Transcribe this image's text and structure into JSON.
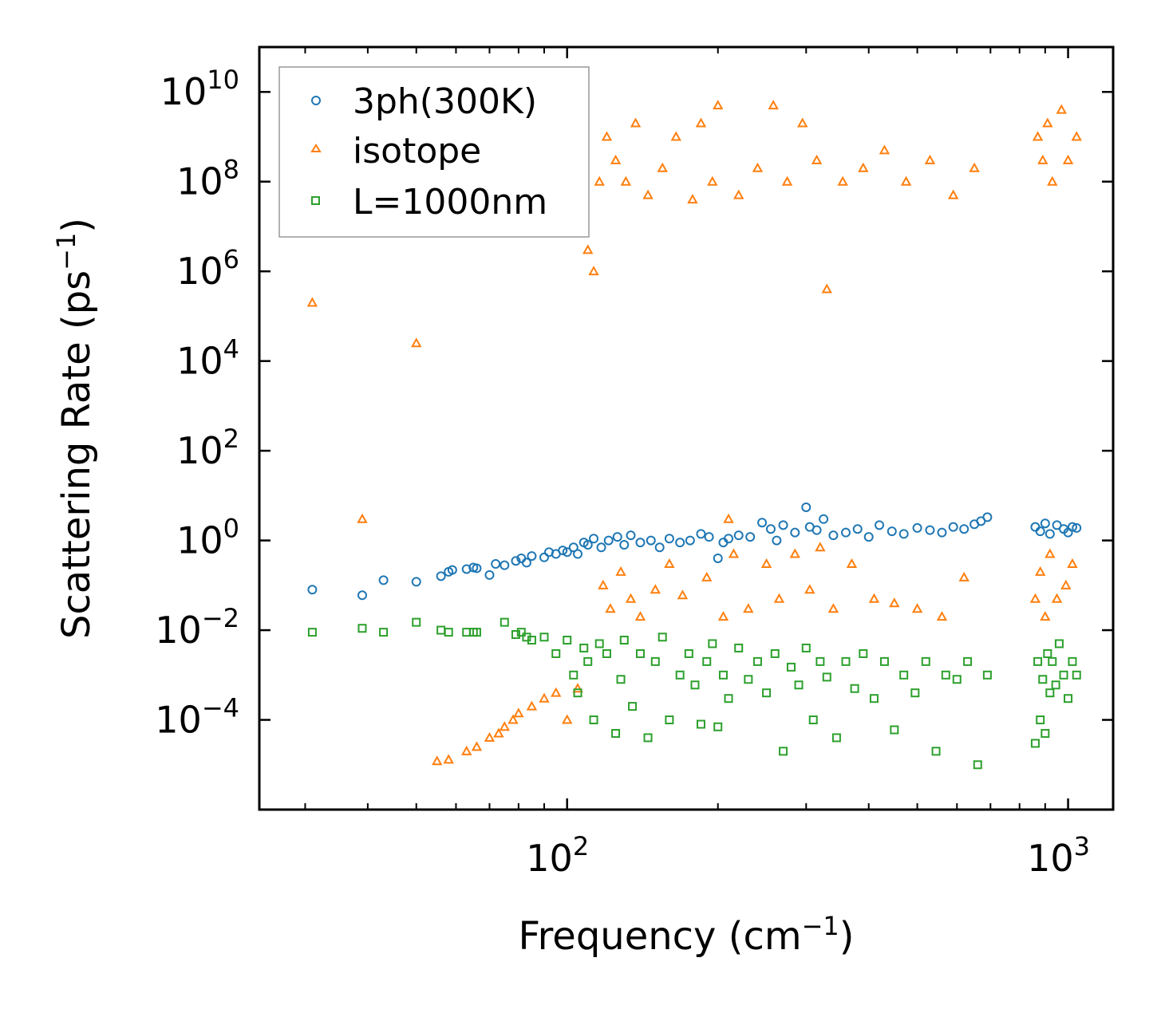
{
  "chart_data": {
    "type": "scatter",
    "title": "",
    "xlabel": "Frequency (cm",
    "xlabel_sup": "−1",
    "xlabel_close": ")",
    "ylabel": "Scattering Rate (ps",
    "ylabel_sup": "−1",
    "ylabel_close": ")",
    "xscale": "log",
    "yscale": "log",
    "xlim": [
      24.3,
      1230
    ],
    "ylim": [
      1e-06,
      100000000000.0
    ],
    "grid": false,
    "legend_position": "upper-left",
    "x_ticks": [
      {
        "value": 100,
        "base": "10",
        "exp": "2"
      },
      {
        "value": 1000,
        "base": "10",
        "exp": "3"
      }
    ],
    "y_ticks": [
      {
        "value": 0.0001,
        "base": "10",
        "exp": "−4"
      },
      {
        "value": 0.01,
        "base": "10",
        "exp": "−2"
      },
      {
        "value": 1,
        "base": "10",
        "exp": "0"
      },
      {
        "value": 100,
        "base": "10",
        "exp": "2"
      },
      {
        "value": 10000,
        "base": "10",
        "exp": "4"
      },
      {
        "value": 1000000,
        "base": "10",
        "exp": "6"
      },
      {
        "value": 100000000,
        "base": "10",
        "exp": "8"
      },
      {
        "value": 10000000000,
        "base": "10",
        "exp": "10"
      }
    ],
    "series": [
      {
        "name": "3ph(300K)",
        "marker": "circle",
        "color": "#1f77b4",
        "x": [
          31,
          39,
          43,
          50,
          56,
          58,
          59,
          63,
          65,
          66,
          70,
          72,
          75,
          79,
          81,
          83,
          85,
          90,
          92,
          95,
          98,
          100,
          103,
          105,
          108,
          110,
          113,
          117,
          121,
          126,
          130,
          134,
          140,
          147,
          153,
          160,
          168,
          176,
          185,
          192,
          200,
          205,
          210,
          220,
          232,
          245,
          255,
          262,
          270,
          285,
          300,
          305,
          315,
          325,
          340,
          360,
          380,
          400,
          420,
          445,
          470,
          500,
          530,
          560,
          590,
          620,
          650,
          670,
          690,
          860,
          880,
          900,
          920,
          950,
          980,
          1000,
          1020,
          1040
        ],
        "y": [
          0.08,
          0.06,
          0.13,
          0.12,
          0.16,
          0.2,
          0.22,
          0.23,
          0.25,
          0.24,
          0.17,
          0.3,
          0.28,
          0.35,
          0.4,
          0.32,
          0.45,
          0.42,
          0.55,
          0.5,
          0.6,
          0.55,
          0.7,
          0.5,
          0.9,
          0.8,
          1.1,
          0.7,
          1.0,
          1.2,
          0.8,
          1.3,
          0.9,
          1.0,
          0.7,
          1.1,
          0.9,
          1.0,
          1.4,
          1.2,
          0.4,
          0.9,
          1.1,
          1.3,
          1.2,
          2.5,
          1.8,
          1.0,
          2.2,
          1.5,
          5.5,
          2.0,
          1.7,
          3.0,
          1.3,
          1.5,
          1.8,
          1.2,
          2.2,
          1.6,
          1.4,
          1.9,
          1.7,
          1.5,
          2.0,
          1.8,
          2.3,
          2.7,
          3.3,
          2.0,
          1.6,
          2.4,
          1.4,
          2.2,
          1.8,
          1.5,
          2.0,
          1.9
        ]
      },
      {
        "name": "isotope",
        "marker": "triangle",
        "color": "#ff7f0e",
        "x": [
          31,
          39,
          50,
          55,
          58,
          63,
          66,
          70,
          73,
          75,
          78,
          80,
          85,
          90,
          95,
          100,
          105,
          110,
          113,
          116,
          118,
          120,
          122,
          125,
          128,
          131,
          134,
          137,
          140,
          145,
          150,
          155,
          160,
          165,
          170,
          178,
          185,
          190,
          195,
          200,
          205,
          210,
          215,
          220,
          230,
          240,
          250,
          258,
          265,
          275,
          285,
          295,
          305,
          315,
          320,
          330,
          340,
          355,
          370,
          390,
          410,
          430,
          450,
          475,
          500,
          530,
          560,
          590,
          620,
          650,
          860,
          870,
          880,
          890,
          900,
          910,
          920,
          930,
          950,
          970,
          990,
          1000,
          1020,
          1040
        ],
        "y": [
          200000,
          3,
          25000,
          1.2e-05,
          1.3e-05,
          2e-05,
          2.5e-05,
          4e-05,
          5e-05,
          7e-05,
          0.0001,
          0.00014,
          0.0002,
          0.0003,
          0.0004,
          0.0001,
          0.0005,
          3000000,
          1000000,
          100000000.0,
          0.1,
          1000000000.0,
          0.03,
          300000000.0,
          0.2,
          100000000.0,
          0.05,
          2000000000.0,
          0.02,
          50000000.0,
          0.08,
          200000000.0,
          0.3,
          1000000000.0,
          0.06,
          40000000.0,
          2000000000.0,
          0.15,
          100000000.0,
          5000000000.0,
          0.02,
          3,
          0.5,
          50000000.0,
          0.03,
          200000000.0,
          0.3,
          5000000000.0,
          0.05,
          100000000.0,
          0.5,
          2000000000.0,
          0.08,
          300000000.0,
          0.7,
          400000,
          0.03,
          100000000.0,
          0.3,
          200000000.0,
          0.05,
          500000000.0,
          0.04,
          100000000.0,
          0.03,
          300000000.0,
          0.02,
          50000000.0,
          0.15,
          200000000.0,
          0.05,
          1000000000.0,
          0.2,
          300000000.0,
          0.02,
          2000000000.0,
          0.5,
          100000000.0,
          0.05,
          4000000000.0,
          0.1,
          300000000.0,
          0.3,
          1000000000.0
        ]
      },
      {
        "name": "L=1000nm",
        "marker": "square",
        "color": "#2ca02c",
        "x": [
          31,
          39,
          43,
          50,
          56,
          58,
          63,
          65,
          66,
          75,
          79,
          81,
          83,
          85,
          90,
          95,
          100,
          103,
          105,
          108,
          110,
          113,
          116,
          120,
          125,
          128,
          130,
          135,
          140,
          145,
          150,
          155,
          160,
          168,
          175,
          180,
          185,
          190,
          195,
          200,
          205,
          210,
          220,
          230,
          240,
          250,
          260,
          270,
          280,
          290,
          300,
          310,
          320,
          330,
          345,
          360,
          375,
          390,
          410,
          430,
          450,
          470,
          495,
          520,
          545,
          570,
          600,
          630,
          660,
          690,
          860,
          870,
          880,
          890,
          900,
          910,
          920,
          930,
          945,
          960,
          980,
          1000,
          1020,
          1040
        ],
        "y": [
          0.009,
          0.011,
          0.009,
          0.015,
          0.01,
          0.009,
          0.009,
          0.009,
          0.009,
          0.015,
          0.008,
          0.009,
          0.007,
          0.006,
          0.007,
          0.003,
          0.006,
          0.001,
          0.0004,
          0.004,
          0.002,
          0.0001,
          0.005,
          0.003,
          5e-05,
          0.0008,
          0.006,
          0.0002,
          0.003,
          4e-05,
          0.002,
          0.007,
          0.0001,
          0.001,
          0.003,
          0.0006,
          8e-05,
          0.002,
          0.005,
          7e-05,
          0.001,
          0.0003,
          0.004,
          0.0008,
          0.002,
          0.0004,
          0.003,
          2e-05,
          0.0015,
          0.0006,
          0.004,
          0.0001,
          0.002,
          0.0009,
          4e-05,
          0.002,
          0.0005,
          0.003,
          0.0003,
          0.002,
          6e-05,
          0.001,
          0.0004,
          0.002,
          2e-05,
          0.001,
          0.0008,
          0.002,
          1e-05,
          0.001,
          3e-05,
          0.002,
          0.0001,
          0.0008,
          5e-05,
          0.003,
          0.0004,
          0.002,
          0.0006,
          0.005,
          0.001,
          0.0003,
          0.002,
          0.001
        ]
      }
    ]
  }
}
